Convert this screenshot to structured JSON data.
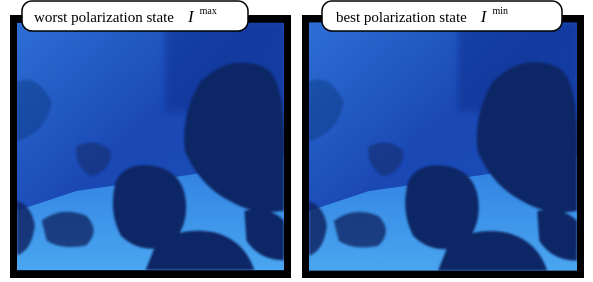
{
  "panels": [
    {
      "label": "worst polarization state",
      "symbol": "I",
      "superscript": "max"
    },
    {
      "label": "best polarization state",
      "symbol": "I",
      "superscript": "min"
    }
  ]
}
